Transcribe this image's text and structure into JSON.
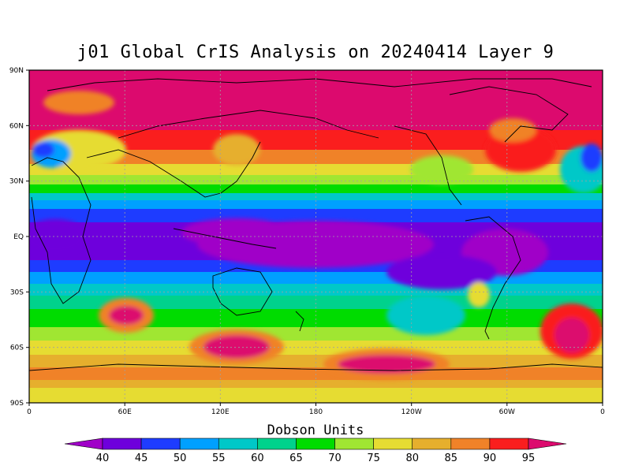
{
  "title": "j01 Global CrIS Analysis on 20240414 Layer 9",
  "lat_labels": [
    "90N",
    "60N",
    "30N",
    "EQ",
    "30S",
    "60S",
    "90S"
  ],
  "lon_labels": [
    "0",
    "60E",
    "120E",
    "180",
    "120W",
    "60W",
    "0"
  ],
  "colorbar": {
    "title": "Dobson Units",
    "ticks": [
      "40",
      "45",
      "50",
      "55",
      "60",
      "65",
      "70",
      "75",
      "80",
      "85",
      "90",
      "95"
    ],
    "colors": [
      "#a000c8",
      "#6e00dc",
      "#1e3cff",
      "#00a0ff",
      "#00c8c8",
      "#00d28c",
      "#00dc00",
      "#a0e632",
      "#e6dc32",
      "#e6af2d",
      "#f08228",
      "#fa1e1e",
      "#dc0a6e"
    ]
  }
}
